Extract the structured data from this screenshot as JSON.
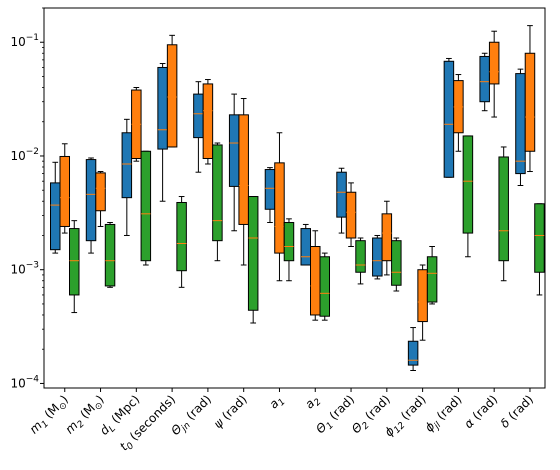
{
  "chart_data": {
    "type": "box",
    "y_scale": "log",
    "ylim": [
      0.0001,
      0.2
    ],
    "y_ticks": [
      {
        "value": 0.0001,
        "base": "10",
        "exp": "−4"
      },
      {
        "value": 0.001,
        "base": "10",
        "exp": "−3"
      },
      {
        "value": 0.01,
        "base": "10",
        "exp": "−2"
      },
      {
        "value": 0.1,
        "base": "10",
        "exp": "−1"
      }
    ],
    "grid": false,
    "legend": "none",
    "series_colors": [
      "#1f77b4",
      "#ff7f0e",
      "#2ca02c"
    ],
    "median_color": "#ff7f0e",
    "categories": [
      {
        "main": "m",
        "sub": "1",
        "unit": "(M",
        "unit_sub": "⊙",
        "unit_end": ")"
      },
      {
        "main": "m",
        "sub": "2",
        "unit": "(M",
        "unit_sub": "⊙",
        "unit_end": ")"
      },
      {
        "main": "d",
        "sub": "L",
        "unit": "(Mpc)"
      },
      {
        "main": "t",
        "sub": "0",
        "unit": "(seconds)"
      },
      {
        "main": "Θ",
        "sub": "jn",
        "unit": "(rad)"
      },
      {
        "main": "ψ",
        "sub": "",
        "unit": "(rad)"
      },
      {
        "main": "a",
        "sub": "1",
        "unit": ""
      },
      {
        "main": "a",
        "sub": "2",
        "unit": ""
      },
      {
        "main": "Θ",
        "sub": "1",
        "unit": "(rad)"
      },
      {
        "main": "Θ",
        "sub": "2",
        "unit": "(rad)"
      },
      {
        "main": "ϕ",
        "sub": "12",
        "unit": "(rad)"
      },
      {
        "main": "ϕ",
        "sub": "jl",
        "unit": "(rad)"
      },
      {
        "main": "α",
        "sub": "",
        "unit": "(rad)"
      },
      {
        "main": "δ",
        "sub": "",
        "unit": "(rad)"
      }
    ],
    "series": [
      {
        "boxes": [
          {
            "whislo": 0.0014,
            "q1": 0.0015,
            "med": 0.0037,
            "q3": 0.0058,
            "whishi": 0.0088
          },
          {
            "whislo": 0.0014,
            "q1": 0.0018,
            "med": 0.0046,
            "q3": 0.0093,
            "whishi": 0.0096
          },
          {
            "whislo": 0.002,
            "q1": 0.0043,
            "med": 0.0085,
            "q3": 0.016,
            "whishi": 0.021
          },
          {
            "whislo": 0.004,
            "q1": 0.0115,
            "med": 0.017,
            "q3": 0.06,
            "whishi": 0.065
          },
          {
            "whislo": 0.0072,
            "q1": 0.0145,
            "med": 0.0235,
            "q3": 0.035,
            "whishi": 0.045
          },
          {
            "whislo": 0.0022,
            "q1": 0.0054,
            "med": 0.013,
            "q3": 0.023,
            "whishi": 0.035
          },
          {
            "whislo": 0.0026,
            "q1": 0.0034,
            "med": 0.0052,
            "q3": 0.0076,
            "whishi": 0.0079
          },
          {
            "whislo": 0.0011,
            "q1": 0.0011,
            "med": 0.0013,
            "q3": 0.0023,
            "whishi": 0.0025
          },
          {
            "whislo": 0.0021,
            "q1": 0.0029,
            "med": 0.0048,
            "q3": 0.0072,
            "whishi": 0.0078
          },
          {
            "whislo": 0.00083,
            "q1": 0.00088,
            "med": 0.0012,
            "q3": 0.0019,
            "whishi": 0.002
          },
          {
            "whislo": 0.00013,
            "q1": 0.000145,
            "med": 0.00016,
            "q3": 0.000235,
            "whishi": 0.00031
          },
          {
            "whislo": 0.0065,
            "q1": 0.0065,
            "med": 0.019,
            "q3": 0.068,
            "whishi": 0.072
          },
          {
            "whislo": 0.025,
            "q1": 0.03,
            "med": 0.045,
            "q3": 0.075,
            "whishi": 0.08
          },
          {
            "whislo": 0.0055,
            "q1": 0.007,
            "med": 0.009,
            "q3": 0.053,
            "whishi": 0.058
          }
        ]
      },
      {
        "boxes": [
          {
            "whislo": 0.0021,
            "q1": 0.0024,
            "med": 0.0043,
            "q3": 0.0099,
            "whishi": 0.0128
          },
          {
            "whislo": 0.0024,
            "q1": 0.0033,
            "med": 0.0052,
            "q3": 0.0071,
            "whishi": 0.0073
          },
          {
            "whislo": 0.009,
            "q1": 0.0095,
            "med": 0.019,
            "q3": 0.038,
            "whishi": 0.04
          },
          {
            "whislo": 0.012,
            "q1": 0.012,
            "med": 0.033,
            "q3": 0.095,
            "whishi": 0.115
          },
          {
            "whislo": 0.0085,
            "q1": 0.0095,
            "med": 0.025,
            "q3": 0.043,
            "whishi": 0.047
          },
          {
            "whislo": 0.0011,
            "q1": 0.0025,
            "med": 0.0055,
            "q3": 0.023,
            "whishi": 0.032
          },
          {
            "whislo": 0.0008,
            "q1": 0.0014,
            "med": 0.0024,
            "q3": 0.0087,
            "whishi": 0.016
          },
          {
            "whislo": 0.00036,
            "q1": 0.0004,
            "med": 0.00072,
            "q3": 0.0016,
            "whishi": 0.0022
          },
          {
            "whislo": 0.0016,
            "q1": 0.0019,
            "med": 0.0032,
            "q3": 0.0048,
            "whishi": 0.0058
          },
          {
            "whislo": 0.0009,
            "q1": 0.0012,
            "med": 0.0021,
            "q3": 0.0031,
            "whishi": 0.004
          },
          {
            "whislo": 0.00024,
            "q1": 0.00035,
            "med": 0.00052,
            "q3": 0.001,
            "whishi": 0.0011
          },
          {
            "whislo": 0.011,
            "q1": 0.016,
            "med": 0.027,
            "q3": 0.046,
            "whishi": 0.052
          },
          {
            "whislo": 0.022,
            "q1": 0.043,
            "med": 0.055,
            "q3": 0.1,
            "whishi": 0.125
          },
          {
            "whislo": 0.0073,
            "q1": 0.011,
            "med": 0.022,
            "q3": 0.08,
            "whishi": 0.14
          }
        ]
      },
      {
        "boxes": [
          {
            "whislo": 0.00042,
            "q1": 0.0006,
            "med": 0.0012,
            "q3": 0.0023,
            "whishi": 0.0027
          },
          {
            "whislo": 0.0007,
            "q1": 0.00072,
            "med": 0.0012,
            "q3": 0.0025,
            "whishi": 0.0026
          },
          {
            "whislo": 0.0011,
            "q1": 0.0012,
            "med": 0.0031,
            "q3": 0.011,
            "whishi": 0.011
          },
          {
            "whislo": 0.0007,
            "q1": 0.00098,
            "med": 0.0017,
            "q3": 0.0039,
            "whishi": 0.0044
          },
          {
            "whislo": 0.0012,
            "q1": 0.0018,
            "med": 0.0027,
            "q3": 0.0125,
            "whishi": 0.013
          },
          {
            "whislo": 0.00034,
            "q1": 0.00044,
            "med": 0.0019,
            "q3": 0.0044,
            "whishi": 0.0044
          },
          {
            "whislo": 0.0008,
            "q1": 0.0012,
            "med": 0.0016,
            "q3": 0.0026,
            "whishi": 0.0028
          },
          {
            "whislo": 0.00036,
            "q1": 0.00039,
            "med": 0.00062,
            "q3": 0.0013,
            "whishi": 0.0014
          },
          {
            "whislo": 0.00075,
            "q1": 0.00095,
            "med": 0.0011,
            "q3": 0.0018,
            "whishi": 0.0019
          },
          {
            "whislo": 0.00065,
            "q1": 0.00073,
            "med": 0.00095,
            "q3": 0.0018,
            "whishi": 0.0019
          },
          {
            "whislo": 0.0005,
            "q1": 0.00052,
            "med": 0.00093,
            "q3": 0.0013,
            "whishi": 0.0016
          },
          {
            "whislo": 0.0013,
            "q1": 0.0021,
            "med": 0.006,
            "q3": 0.015,
            "whishi": 0.015
          },
          {
            "whislo": 0.0008,
            "q1": 0.0012,
            "med": 0.0022,
            "q3": 0.0098,
            "whishi": 0.012
          },
          {
            "whislo": 0.0006,
            "q1": 0.00095,
            "med": 0.002,
            "q3": 0.0038,
            "whishi": 0.0038
          }
        ]
      }
    ]
  }
}
